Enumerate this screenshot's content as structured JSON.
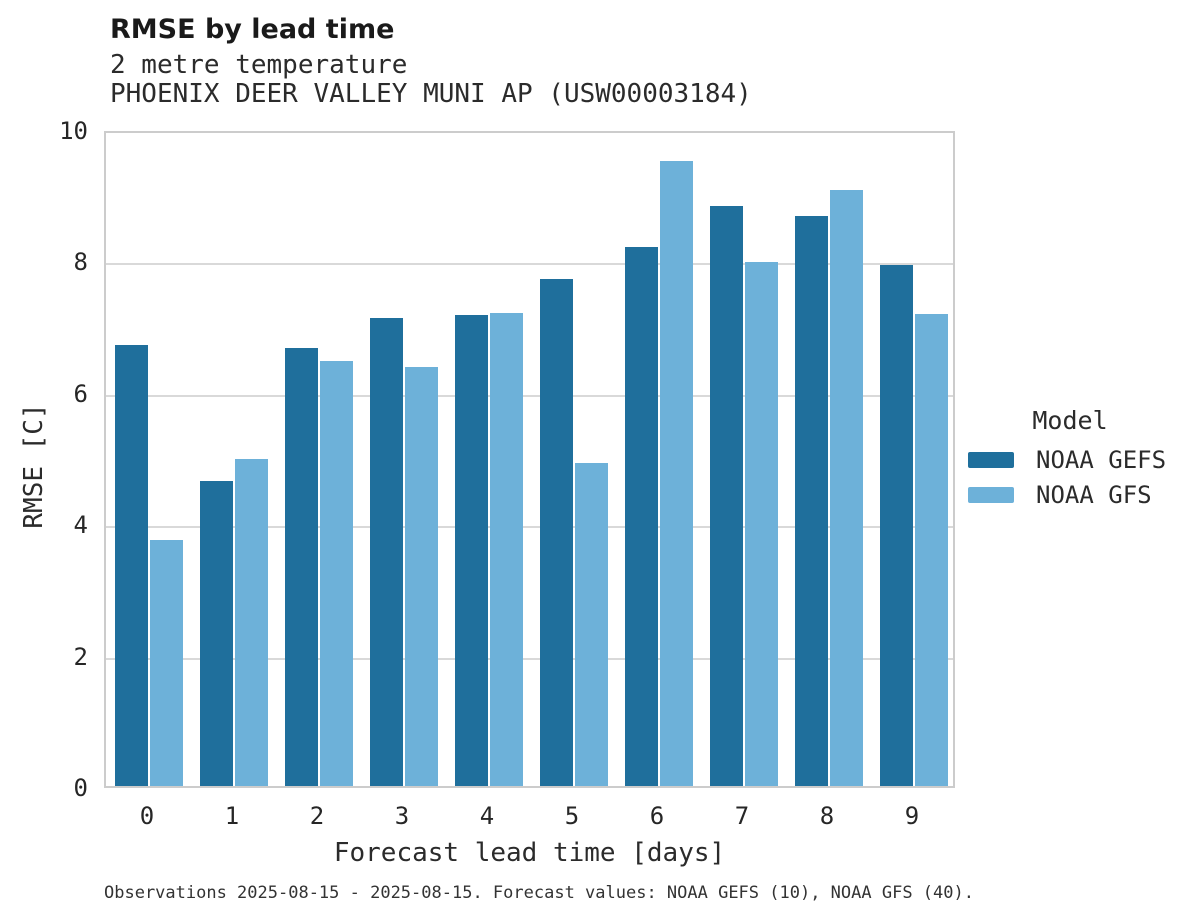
{
  "header": {
    "title": "RMSE by lead time",
    "subtitle1": "2 metre temperature",
    "subtitle2": "PHOENIX DEER VALLEY MUNI AP (USW00003184)"
  },
  "legend": {
    "title": "Model",
    "entries": [
      {
        "label": "NOAA GEFS",
        "color": "#1f6f9c"
      },
      {
        "label": "NOAA GFS",
        "color": "#6db1d9"
      }
    ]
  },
  "footer": {
    "note": "Observations 2025-08-15 - 2025-08-15. Forecast values: NOAA GEFS (10), NOAA GFS (40)."
  },
  "chart_data": {
    "type": "bar",
    "title": "RMSE by lead time",
    "subtitle": [
      "2 metre temperature",
      "PHOENIX DEER VALLEY MUNI AP (USW00003184)"
    ],
    "categories": [
      0,
      1,
      2,
      3,
      4,
      5,
      6,
      7,
      8,
      9
    ],
    "series": [
      {
        "name": "NOAA GEFS",
        "color": "#1f6f9c",
        "values": [
          6.71,
          4.64,
          6.66,
          7.13,
          7.17,
          7.71,
          8.21,
          8.83,
          8.68,
          7.93
        ]
      },
      {
        "name": "NOAA GFS",
        "color": "#6db1d9",
        "values": [
          3.75,
          4.98,
          6.47,
          6.38,
          7.2,
          4.92,
          9.52,
          7.97,
          9.07,
          7.18
        ]
      }
    ],
    "xlabel": "Forecast lead time [days]",
    "ylabel": "RMSE [C]",
    "ylim": [
      0,
      10
    ],
    "y_ticks": [
      0,
      2,
      4,
      6,
      8,
      10
    ],
    "grid": true,
    "legend_position": "right",
    "legend_title": "Model"
  },
  "colors": {
    "grid": "#d9d9d9",
    "spine": "#cccccc",
    "text": "#262626"
  }
}
